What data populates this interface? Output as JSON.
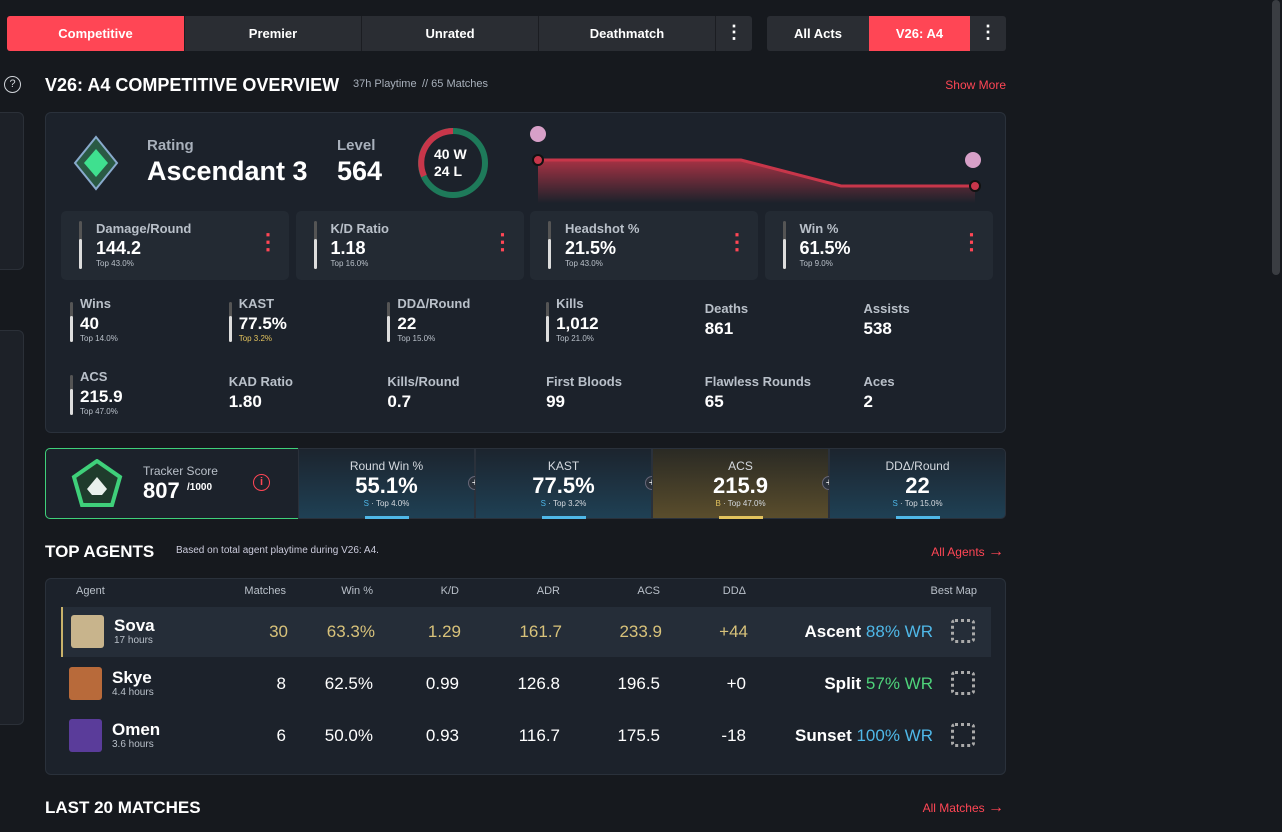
{
  "tabs": [
    "Competitive",
    "Premier",
    "Unrated",
    "Deathmatch"
  ],
  "act_tabs": [
    "All Acts",
    "V26: A4"
  ],
  "overview": {
    "title": "V26: A4 COMPETITIVE OVERVIEW",
    "playtime": "37h Playtime",
    "matches": "// 65 Matches",
    "show_more": "Show More"
  },
  "rank": {
    "rating_label": "Rating",
    "rating": "Ascendant 3",
    "level_label": "Level",
    "level": "564",
    "wins": "40 W",
    "losses": "24 L"
  },
  "main_stats": [
    {
      "label": "Damage/Round",
      "value": "144.2",
      "top": "Top 43.0%"
    },
    {
      "label": "K/D Ratio",
      "value": "1.18",
      "top": "Top 16.0%"
    },
    {
      "label": "Headshot %",
      "value": "21.5%",
      "top": "Top 43.0%"
    },
    {
      "label": "Win %",
      "value": "61.5%",
      "top": "Top 9.0%"
    }
  ],
  "stats": [
    {
      "label": "Wins",
      "value": "40",
      "top": "Top 14.0%"
    },
    {
      "label": "KAST",
      "value": "77.5%",
      "top": "Top 3.2%"
    },
    {
      "label": "DDΔ/Round",
      "value": "22",
      "top": "Top 15.0%"
    },
    {
      "label": "Kills",
      "value": "1,012",
      "top": "Top 21.0%"
    },
    {
      "label": "Deaths",
      "value": "861"
    },
    {
      "label": "Assists",
      "value": "538"
    },
    {
      "label": "ACS",
      "value": "215.9",
      "top": "Top 47.0%"
    },
    {
      "label": "KAD Ratio",
      "value": "1.80"
    },
    {
      "label": "Kills/Round",
      "value": "0.7"
    },
    {
      "label": "First Bloods",
      "value": "99"
    },
    {
      "label": "Flawless Rounds",
      "value": "65"
    },
    {
      "label": "Aces",
      "value": "2"
    }
  ],
  "tracker": {
    "label": "Tracker Score",
    "score": "807",
    "max": "/1000"
  },
  "score_cards": [
    {
      "label": "Round Win %",
      "value": "55.1%",
      "grade": "S",
      "top": "Top 4.0%"
    },
    {
      "label": "KAST",
      "value": "77.5%",
      "grade": "S",
      "top": "Top 3.2%"
    },
    {
      "label": "ACS",
      "value": "215.9",
      "grade": "B",
      "top": "Top 47.0%"
    },
    {
      "label": "DDΔ/Round",
      "value": "22",
      "grade": "S",
      "top": "Top 15.0%"
    }
  ],
  "top_agents": {
    "title": "TOP AGENTS",
    "note": "Based on total agent playtime during V26: A4.",
    "link": "All Agents",
    "columns": [
      "Agent",
      "Matches",
      "Win %",
      "K/D",
      "ADR",
      "ACS",
      "DDΔ",
      "Best Map"
    ],
    "rows": [
      {
        "agent": "Sova",
        "hours": "17 hours",
        "cells": [
          "30",
          "63.3%",
          "1.29",
          "161.7",
          "233.9",
          "+44"
        ],
        "map": "Ascent",
        "wr": "88% WR"
      },
      {
        "agent": "Skye",
        "hours": "4.4 hours",
        "cells": [
          "8",
          "62.5%",
          "0.99",
          "126.8",
          "196.5",
          "+0"
        ],
        "map": "Split",
        "wr": "57% WR"
      },
      {
        "agent": "Omen",
        "hours": "3.6 hours",
        "cells": [
          "6",
          "50.0%",
          "0.93",
          "116.7",
          "175.5",
          "-18"
        ],
        "map": "Sunset",
        "wr": "100% WR"
      }
    ]
  },
  "last_matches": {
    "title": "LAST 20 MATCHES",
    "link": "All Matches"
  }
}
